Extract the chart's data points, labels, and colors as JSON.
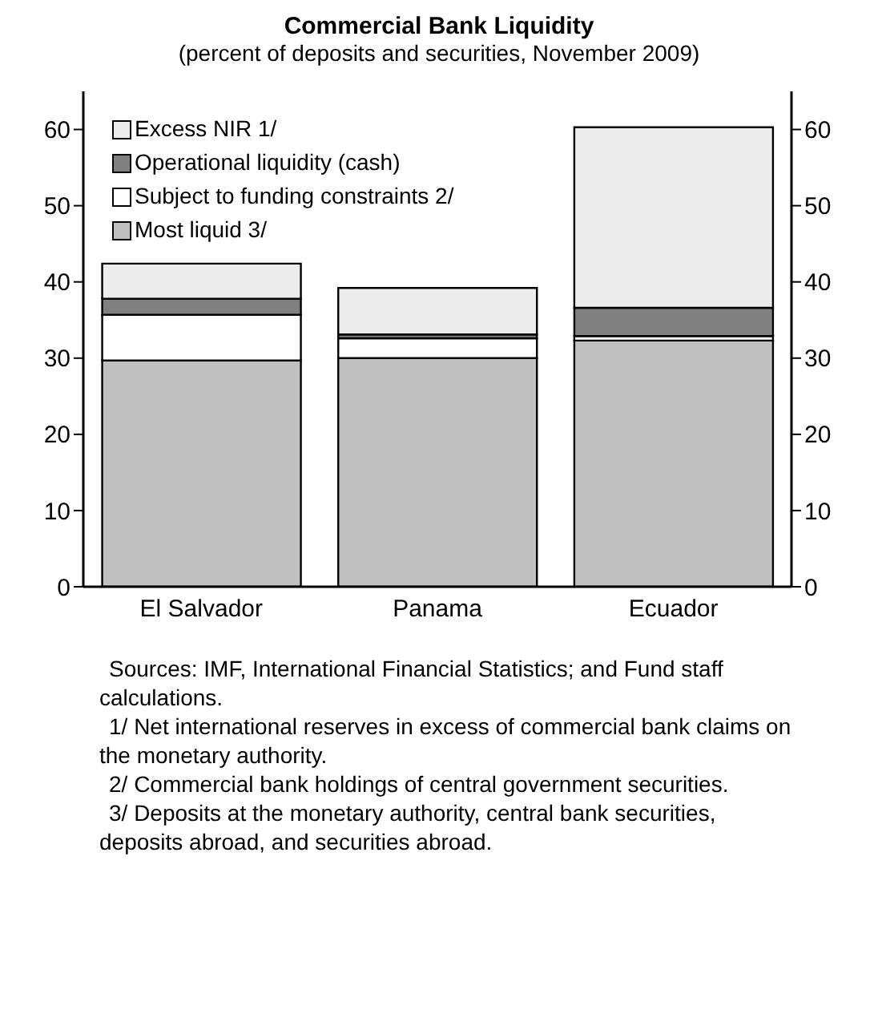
{
  "chart_data": {
    "type": "bar",
    "title": "Commercial Bank Liquidity",
    "subtitle": "(percent of deposits and securities, November 2009)",
    "categories": [
      "El Salvador",
      "Panama",
      "Ecuador"
    ],
    "stacked": true,
    "series": [
      {
        "name": "Most liquid 3/",
        "color": "#c0c0c0",
        "values": [
          29.7,
          30.0,
          32.3
        ]
      },
      {
        "name": "Subject to funding constraints 2/",
        "color": "#ffffff",
        "values": [
          6.0,
          2.6,
          0.6
        ]
      },
      {
        "name": "Operational liquidity (cash)",
        "color": "#808080",
        "values": [
          2.1,
          0.5,
          3.7
        ]
      },
      {
        "name": "Excess NIR 1/",
        "color": "#ececec",
        "values": [
          4.6,
          6.1,
          23.7
        ]
      }
    ],
    "ylim": [
      0,
      65
    ],
    "yticks": [
      0,
      10,
      20,
      30,
      40,
      50,
      60
    ],
    "y2lim": [
      0,
      65
    ],
    "y2ticks": [
      0,
      10,
      20,
      30,
      40,
      50,
      60
    ],
    "grid": false,
    "legend": "top left",
    "annotations": [
      "Sources: IMF, International Financial Statistics; and Fund staff calculations.",
      "1/ Net international reserves in excess of commercial bank claims on the monetary authority.",
      "2/ Commercial bank holdings of central government securities.",
      "3/ Deposits at the monetary authority, central bank securities, deposits abroad, and securities abroad."
    ]
  }
}
